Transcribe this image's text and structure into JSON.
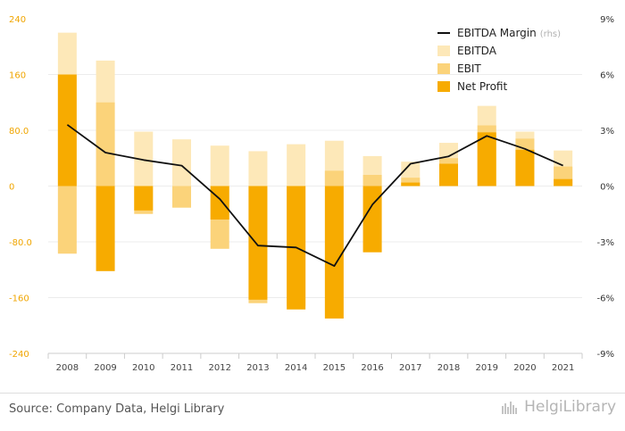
{
  "chart_data": {
    "type": "bar",
    "categories": [
      "2008",
      "2009",
      "2010",
      "2011",
      "2012",
      "2013",
      "2014",
      "2015",
      "2016",
      "2017",
      "2018",
      "2019",
      "2020",
      "2021"
    ],
    "series": [
      {
        "name": "EBITDA Margin",
        "name_suffix": "(rhs)",
        "kind": "line",
        "axis": "right",
        "color": "#111111",
        "values": [
          3.3,
          1.8,
          1.4,
          1.1,
          -0.7,
          -3.2,
          -3.3,
          -4.3,
          -1.0,
          1.2,
          1.6,
          2.7,
          2.0,
          1.1
        ]
      },
      {
        "name": "EBITDA",
        "kind": "bar",
        "color": "#fde8b8",
        "values": [
          220,
          180,
          78,
          67,
          58,
          50,
          60,
          65,
          43,
          35,
          62,
          115,
          78,
          51
        ]
      },
      {
        "name": "EBIT",
        "kind": "bar",
        "color": "#fbd37a",
        "values": [
          -97,
          120,
          -40,
          -31,
          -90,
          -168,
          -172,
          22,
          16,
          12,
          40,
          87,
          68,
          28
        ]
      },
      {
        "name": "Net Profit",
        "kind": "bar",
        "color": "#f7ab00",
        "values": [
          160,
          -122,
          -35,
          0,
          -48,
          -163,
          -177,
          -190,
          -95,
          5,
          32,
          77,
          52,
          10
        ]
      }
    ],
    "y_left": {
      "min": -240,
      "max": 240,
      "ticks": [
        "240",
        "160",
        "80.0",
        "0",
        "-80.0",
        "-160",
        "-240"
      ]
    },
    "y_right": {
      "min": -9,
      "max": 9,
      "ticks": [
        "9%",
        "6%",
        "3%",
        "0%",
        "-3%",
        "-6%",
        "-9%"
      ]
    },
    "grid": true,
    "legend": "top-right"
  },
  "footer": {
    "source": "Source: Company Data, Helgi Library",
    "brand": "HelgiLibrary"
  }
}
